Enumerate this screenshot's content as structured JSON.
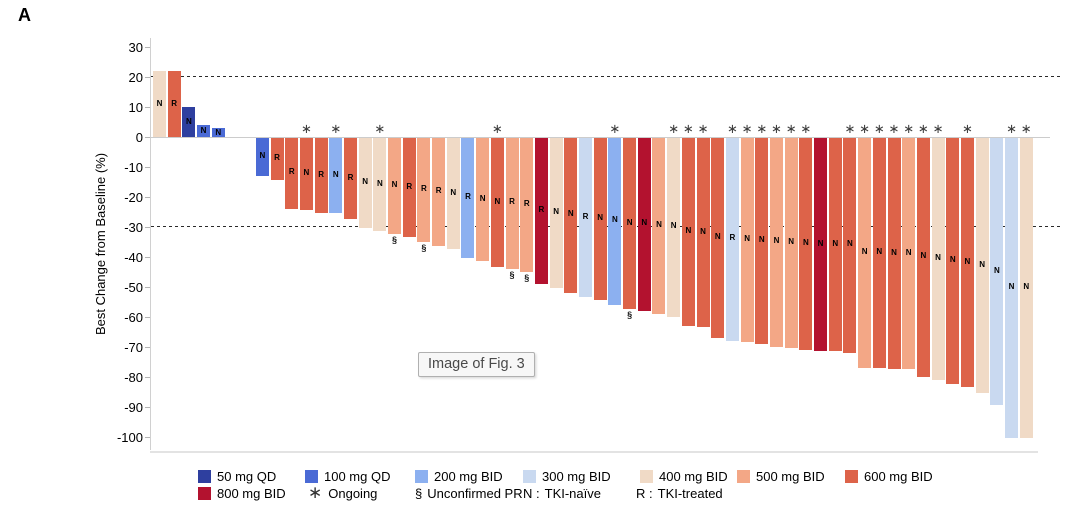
{
  "panel_label": "A",
  "figure_tooltip": "Image of Fig. 3",
  "y_axis": {
    "title": "Best Change from Baseline (%)",
    "ticks": [
      30,
      20,
      10,
      0,
      -10,
      -20,
      -30,
      -40,
      -50,
      -60,
      -70,
      -80,
      -90,
      -100
    ]
  },
  "colors": {
    "50 mg QD": "#2e3f9f",
    "100 mg QD": "#4a6ad5",
    "200 mg BID": "#8cb0f0",
    "300 mg BID": "#c9d9f0",
    "400 mg BID": "#f0dac6",
    "500 mg BID": "#f3a786",
    "600 mg BID": "#dd6349",
    "800 mg BID": "#b3122f"
  },
  "symbols": {
    "ongoing": "∗",
    "unconfirmed_pr": "§"
  },
  "chart_data": {
    "type": "bar",
    "title": "",
    "xlabel": "",
    "ylabel": "Best Change from Baseline (%)",
    "ylim": [
      -100,
      30
    ],
    "reference_lines": [
      20,
      -30
    ],
    "legend_position": "bottom",
    "grid": false,
    "patients": [
      {
        "dose": "400 mg BID",
        "value": 22,
        "status": "N"
      },
      {
        "dose": "600 mg BID",
        "value": 22,
        "status": "R"
      },
      {
        "dose": "50 mg QD",
        "value": 10,
        "status": "N"
      },
      {
        "dose": "100 mg QD",
        "value": 4,
        "status": "N"
      },
      {
        "dose": "100 mg QD",
        "value": 3,
        "status": "N"
      },
      {
        "dose": "100 mg QD",
        "value": -12.5,
        "status": "N"
      },
      {
        "dose": "600 mg BID",
        "value": -14,
        "status": "R"
      },
      {
        "dose": "600 mg BID",
        "value": -23.5,
        "status": "R"
      },
      {
        "dose": "600 mg BID",
        "value": -24,
        "status": "N",
        "ongoing": true
      },
      {
        "dose": "600 mg BID",
        "value": -25,
        "status": "R"
      },
      {
        "dose": "200 mg BID",
        "value": -25,
        "status": "N",
        "ongoing": true
      },
      {
        "dose": "600 mg BID",
        "value": -27,
        "status": "R"
      },
      {
        "dose": "400 mg BID",
        "value": -30,
        "status": "N"
      },
      {
        "dose": "400 mg BID",
        "value": -31,
        "status": "N",
        "ongoing": true
      },
      {
        "dose": "500 mg BID",
        "value": -32,
        "status": "N",
        "pr": true
      },
      {
        "dose": "600 mg BID",
        "value": -33,
        "status": "R"
      },
      {
        "dose": "500 mg BID",
        "value": -34.5,
        "status": "R",
        "pr": true
      },
      {
        "dose": "500 mg BID",
        "value": -36,
        "status": "R"
      },
      {
        "dose": "400 mg BID",
        "value": -37,
        "status": "N"
      },
      {
        "dose": "200 mg BID",
        "value": -40,
        "status": "R"
      },
      {
        "dose": "500 mg BID",
        "value": -41,
        "status": "N"
      },
      {
        "dose": "600 mg BID",
        "value": -43,
        "status": "N",
        "ongoing": true
      },
      {
        "dose": "500 mg BID",
        "value": -43.5,
        "status": "R",
        "pr": true
      },
      {
        "dose": "500 mg BID",
        "value": -44.5,
        "status": "R",
        "pr": true
      },
      {
        "dose": "800 mg BID",
        "value": -48.5,
        "status": "R"
      },
      {
        "dose": "400 mg BID",
        "value": -50,
        "status": "N"
      },
      {
        "dose": "600 mg BID",
        "value": -51.5,
        "status": "N"
      },
      {
        "dose": "300 mg BID",
        "value": -53,
        "status": "R"
      },
      {
        "dose": "600 mg BID",
        "value": -54,
        "status": "N"
      },
      {
        "dose": "200 mg BID",
        "value": -55.5,
        "status": "N",
        "ongoing": true
      },
      {
        "dose": "600 mg BID",
        "value": -57,
        "status": "N",
        "pr": true
      },
      {
        "dose": "800 mg BID",
        "value": -57.5,
        "status": "N"
      },
      {
        "dose": "500 mg BID",
        "value": -58.5,
        "status": "N"
      },
      {
        "dose": "400 mg BID",
        "value": -59.5,
        "status": "N",
        "ongoing": true
      },
      {
        "dose": "600 mg BID",
        "value": -62.5,
        "status": "N",
        "ongoing": true
      },
      {
        "dose": "600 mg BID",
        "value": -63,
        "status": "N",
        "ongoing": true
      },
      {
        "dose": "600 mg BID",
        "value": -66.5,
        "status": "N"
      },
      {
        "dose": "300 mg BID",
        "value": -67.5,
        "status": "R",
        "ongoing": true
      },
      {
        "dose": "500 mg BID",
        "value": -68,
        "status": "N",
        "ongoing": true
      },
      {
        "dose": "600 mg BID",
        "value": -68.5,
        "status": "N",
        "ongoing": true
      },
      {
        "dose": "500 mg BID",
        "value": -69.5,
        "status": "N",
        "ongoing": true
      },
      {
        "dose": "500 mg BID",
        "value": -70,
        "status": "N",
        "ongoing": true
      },
      {
        "dose": "600 mg BID",
        "value": -70.5,
        "status": "N",
        "ongoing": true
      },
      {
        "dose": "800 mg BID",
        "value": -71,
        "status": "N"
      },
      {
        "dose": "600 mg BID",
        "value": -71,
        "status": "N"
      },
      {
        "dose": "600 mg BID",
        "value": -71.5,
        "status": "N",
        "ongoing": true
      },
      {
        "dose": "500 mg BID",
        "value": -76.5,
        "status": "N",
        "ongoing": true
      },
      {
        "dose": "600 mg BID",
        "value": -76.5,
        "status": "N",
        "ongoing": true
      },
      {
        "dose": "600 mg BID",
        "value": -77,
        "status": "N",
        "ongoing": true
      },
      {
        "dose": "500 mg BID",
        "value": -77,
        "status": "N",
        "ongoing": true
      },
      {
        "dose": "600 mg BID",
        "value": -79.5,
        "status": "N",
        "ongoing": true
      },
      {
        "dose": "400 mg BID",
        "value": -80.5,
        "status": "N",
        "ongoing": true
      },
      {
        "dose": "600 mg BID",
        "value": -82,
        "status": "N"
      },
      {
        "dose": "600 mg BID",
        "value": -83,
        "status": "N",
        "ongoing": true
      },
      {
        "dose": "400 mg BID",
        "value": -85,
        "status": "N"
      },
      {
        "dose": "300 mg BID",
        "value": -89,
        "status": "N"
      },
      {
        "dose": "300 mg BID",
        "value": -100,
        "status": "N",
        "ongoing": true
      },
      {
        "dose": "400 mg BID",
        "value": -100,
        "status": "N",
        "ongoing": true
      }
    ]
  },
  "legend": {
    "row1": [
      {
        "dose": "50 mg QD",
        "label": "50 mg QD"
      },
      {
        "dose": "100 mg QD",
        "label": "100 mg QD"
      },
      {
        "dose": "200 mg BID",
        "label": "200 mg BID"
      },
      {
        "dose": "300 mg BID",
        "label": "300 mg BID"
      },
      {
        "dose": "400 mg BID",
        "label": "400 mg BID"
      },
      {
        "dose": "500 mg BID",
        "label": "500 mg BID"
      },
      {
        "dose": "600 mg BID",
        "label": "600 mg BID"
      }
    ],
    "row2": [
      {
        "dose": "800 mg BID",
        "label": "800 mg BID"
      },
      {
        "sym": "∗",
        "label": "Ongoing"
      },
      {
        "sym": "§",
        "label": "Unconfirmed PR"
      },
      {
        "sym": "N :",
        "label": "TKI-naïve"
      },
      {
        "sym": "R :",
        "label": "TKI-treated"
      }
    ]
  }
}
